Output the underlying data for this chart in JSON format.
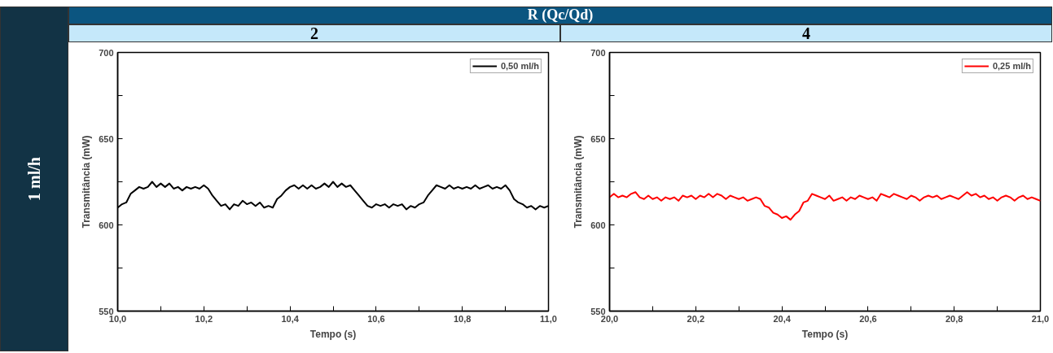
{
  "chart_data": [
    {
      "type": "line",
      "title": "2",
      "annotations": [
        "R (Qc/Qd)",
        "1 ml/h"
      ],
      "xlabel": "Tempo (s)",
      "ylabel": "Transmitância (mW)",
      "legend": "top right",
      "xlim": [
        10.0,
        11.0
      ],
      "ylim": [
        550,
        700
      ],
      "xticks": [
        {
          "value": 10.0,
          "label": "10,0"
        },
        {
          "value": 10.1,
          "label": null
        },
        {
          "value": 10.2,
          "label": "10,2"
        },
        {
          "value": 10.3,
          "label": null
        },
        {
          "value": 10.4,
          "label": "10,4"
        },
        {
          "value": 10.5,
          "label": null
        },
        {
          "value": 10.6,
          "label": "10,6"
        },
        {
          "value": 10.7,
          "label": null
        },
        {
          "value": 10.8,
          "label": "10,8"
        },
        {
          "value": 10.9,
          "label": null
        },
        {
          "value": 11.0,
          "label": "11,0"
        }
      ],
      "yticks": [
        550,
        {
          "value": 575,
          "label": null
        },
        600,
        {
          "value": 625,
          "label": null
        },
        650,
        {
          "value": 675,
          "label": null
        },
        700
      ],
      "x": [
        10.0,
        10.01,
        10.02,
        10.03,
        10.04,
        10.05,
        10.06,
        10.07,
        10.08,
        10.09,
        10.1,
        10.11,
        10.12,
        10.13,
        10.14,
        10.15,
        10.16,
        10.17,
        10.18,
        10.19,
        10.2,
        10.21,
        10.22,
        10.23,
        10.24,
        10.25,
        10.26,
        10.27,
        10.28,
        10.29,
        10.3,
        10.31,
        10.32,
        10.33,
        10.34,
        10.35,
        10.36,
        10.37,
        10.38,
        10.39,
        10.4,
        10.41,
        10.42,
        10.43,
        10.44,
        10.45,
        10.46,
        10.47,
        10.48,
        10.49,
        10.5,
        10.51,
        10.52,
        10.53,
        10.54,
        10.55,
        10.56,
        10.57,
        10.58,
        10.59,
        10.6,
        10.61,
        10.62,
        10.63,
        10.64,
        10.65,
        10.66,
        10.67,
        10.68,
        10.69,
        10.7,
        10.71,
        10.72,
        10.73,
        10.74,
        10.75,
        10.76,
        10.77,
        10.78,
        10.79,
        10.8,
        10.81,
        10.82,
        10.83,
        10.84,
        10.85,
        10.86,
        10.87,
        10.88,
        10.89,
        10.9,
        10.91,
        10.92,
        10.93,
        10.94,
        10.95,
        10.96,
        10.97,
        10.98,
        10.99,
        11.0
      ],
      "series": [
        {
          "name": "0,50 ml/h",
          "color": "#000000",
          "values": [
            610,
            612,
            613,
            618,
            620,
            622,
            621,
            622,
            625,
            622,
            624,
            622,
            624,
            621,
            622,
            620,
            622,
            621,
            622,
            621,
            623,
            621,
            617,
            614,
            611,
            612,
            609,
            612,
            611,
            614,
            612,
            613,
            611,
            613,
            610,
            611,
            610,
            615,
            617,
            620,
            622,
            623,
            621,
            623,
            621,
            623,
            621,
            622,
            624,
            622,
            625,
            622,
            624,
            622,
            623,
            620,
            617,
            614,
            611,
            610,
            612,
            611,
            612,
            610,
            612,
            611,
            612,
            609,
            611,
            610,
            612,
            613,
            617,
            620,
            623,
            622,
            621,
            623,
            621,
            622,
            621,
            622,
            621,
            623,
            621,
            622,
            623,
            621,
            622,
            621,
            623,
            620,
            615,
            613,
            612,
            610,
            611,
            609,
            611,
            610,
            611
          ]
        }
      ]
    },
    {
      "type": "line",
      "title": "4",
      "xlabel": "Tempo (s)",
      "ylabel": "Transmitância (mW)",
      "legend": "top right",
      "xlim": [
        20.0,
        21.0
      ],
      "ylim": [
        550,
        700
      ],
      "xticks": [
        {
          "value": 20.0,
          "label": "20,0"
        },
        {
          "value": 20.1,
          "label": null
        },
        {
          "value": 20.2,
          "label": "20,2"
        },
        {
          "value": 20.3,
          "label": null
        },
        {
          "value": 20.4,
          "label": "20,4"
        },
        {
          "value": 20.5,
          "label": null
        },
        {
          "value": 20.6,
          "label": "20,6"
        },
        {
          "value": 20.7,
          "label": null
        },
        {
          "value": 20.8,
          "label": "20,8"
        },
        {
          "value": 20.9,
          "label": null
        },
        {
          "value": 21.0,
          "label": "21,0"
        }
      ],
      "yticks": [
        550,
        {
          "value": 575,
          "label": null
        },
        600,
        {
          "value": 625,
          "label": null
        },
        650,
        {
          "value": 675,
          "label": null
        },
        700
      ],
      "x": [
        20.0,
        20.01,
        20.02,
        20.03,
        20.04,
        20.05,
        20.06,
        20.07,
        20.08,
        20.09,
        20.1,
        20.11,
        20.12,
        20.13,
        20.14,
        20.15,
        20.16,
        20.17,
        20.18,
        20.19,
        20.2,
        20.21,
        20.22,
        20.23,
        20.24,
        20.25,
        20.26,
        20.27,
        20.28,
        20.29,
        20.3,
        20.31,
        20.32,
        20.33,
        20.34,
        20.35,
        20.36,
        20.37,
        20.38,
        20.39,
        20.4,
        20.41,
        20.42,
        20.43,
        20.44,
        20.45,
        20.46,
        20.47,
        20.48,
        20.49,
        20.5,
        20.51,
        20.52,
        20.53,
        20.54,
        20.55,
        20.56,
        20.57,
        20.58,
        20.59,
        20.6,
        20.61,
        20.62,
        20.63,
        20.64,
        20.65,
        20.66,
        20.67,
        20.68,
        20.69,
        20.7,
        20.71,
        20.72,
        20.73,
        20.74,
        20.75,
        20.76,
        20.77,
        20.78,
        20.79,
        20.8,
        20.81,
        20.82,
        20.83,
        20.84,
        20.85,
        20.86,
        20.87,
        20.88,
        20.89,
        20.9,
        20.91,
        20.92,
        20.93,
        20.94,
        20.95,
        20.96,
        20.97,
        20.98,
        20.99,
        21.0
      ],
      "series": [
        {
          "name": "0,25 ml/h",
          "color": "#ff0000",
          "values": [
            616,
            618,
            616,
            617,
            616,
            618,
            619,
            616,
            615,
            617,
            615,
            616,
            614,
            616,
            615,
            616,
            614,
            617,
            616,
            617,
            615,
            617,
            616,
            618,
            616,
            618,
            617,
            615,
            617,
            616,
            615,
            616,
            614,
            615,
            616,
            615,
            611,
            610,
            607,
            606,
            604,
            605,
            603,
            606,
            608,
            613,
            614,
            618,
            617,
            616,
            615,
            617,
            614,
            615,
            616,
            614,
            616,
            615,
            617,
            616,
            615,
            616,
            614,
            618,
            617,
            616,
            618,
            617,
            616,
            615,
            617,
            616,
            614,
            616,
            617,
            616,
            617,
            615,
            616,
            617,
            616,
            615,
            617,
            619,
            617,
            618,
            616,
            617,
            615,
            616,
            614,
            616,
            617,
            616,
            614,
            616,
            617,
            615,
            616,
            615,
            614
          ]
        }
      ]
    }
  ]
}
